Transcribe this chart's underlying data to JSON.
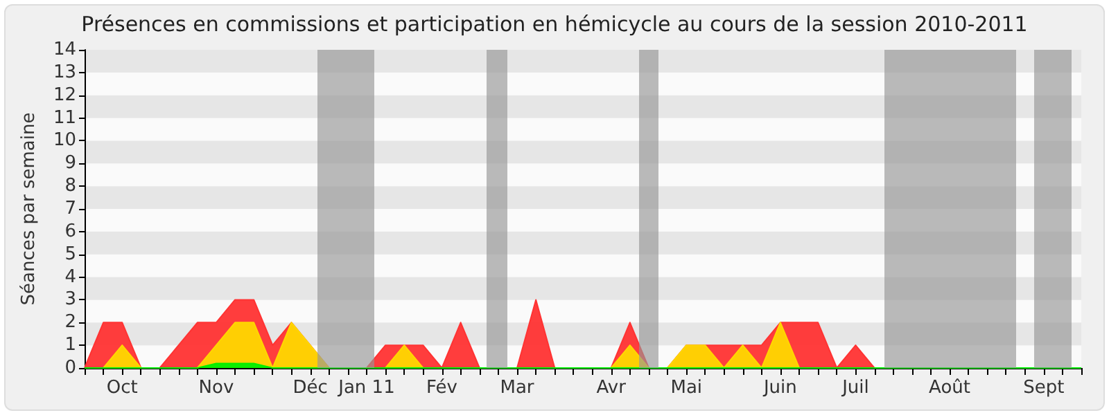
{
  "chart_data": {
    "type": "area",
    "title": "Présences en commissions et participation en hémicycle au cours de la session 2010-2011",
    "ylabel": "Séances par semaine",
    "categories": [
      null,
      null,
      "Oct",
      null,
      null,
      null,
      null,
      "Nov",
      null,
      null,
      null,
      null,
      "Déc",
      null,
      null,
      "Jan 11",
      null,
      null,
      null,
      "Fév",
      null,
      null,
      null,
      "Mar",
      null,
      null,
      null,
      null,
      "Avr",
      null,
      null,
      null,
      "Mai",
      null,
      null,
      null,
      null,
      "Juin",
      null,
      null,
      null,
      "Juil",
      null,
      null,
      null,
      null,
      "Août",
      null,
      null,
      null,
      null,
      "Sept",
      null,
      null
    ],
    "series": [
      {
        "color": "#ff3333",
        "values": [
          0,
          2,
          2,
          0,
          0,
          1,
          2,
          2,
          3,
          3,
          1,
          2,
          1,
          0,
          0,
          0,
          1,
          1,
          1,
          0,
          2,
          0,
          0,
          0,
          3,
          0,
          0,
          0,
          0,
          2,
          0,
          0,
          1,
          1,
          1,
          1,
          1,
          2,
          2,
          2,
          0,
          1,
          0,
          0,
          0,
          0,
          0,
          0,
          0,
          0,
          0,
          0,
          0,
          0
        ]
      },
      {
        "color": "#ffd700",
        "values": [
          0,
          0,
          1,
          0,
          0,
          0,
          0,
          1,
          2,
          2,
          0,
          2,
          1,
          0,
          0,
          0,
          0,
          1,
          0,
          0,
          0,
          0,
          0,
          0,
          0,
          0,
          0,
          0,
          0,
          1,
          0,
          0,
          1,
          1,
          0,
          1,
          0,
          2,
          0,
          0,
          0,
          0,
          0,
          0,
          0,
          0,
          0,
          0,
          0,
          0,
          0,
          0,
          0,
          0
        ]
      },
      {
        "color": "#00ee00",
        "values": [
          0,
          0,
          0,
          0,
          0,
          0,
          0,
          0.2,
          0.2,
          0.2,
          0,
          0,
          0,
          0,
          0,
          0,
          0,
          0,
          0,
          0,
          0,
          0,
          0,
          0,
          0,
          0,
          0,
          0,
          0,
          0,
          0,
          0,
          0,
          0,
          0,
          0,
          0,
          0,
          0,
          0,
          0,
          0,
          0,
          0,
          0,
          0,
          0,
          0,
          0,
          0,
          0,
          0,
          0,
          0
        ]
      }
    ],
    "ylim": [
      0,
      14
    ],
    "yticks": [
      0,
      1,
      2,
      3,
      4,
      5,
      6,
      7,
      8,
      9,
      10,
      11,
      12,
      13,
      14
    ],
    "marker": "none"
  }
}
